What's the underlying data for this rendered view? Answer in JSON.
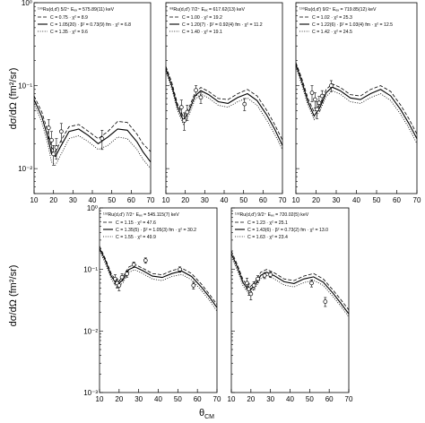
{
  "figure": {
    "ylabel": "dσ/dΩ (fm²/sr)",
    "xlabel_main": "θ",
    "xlabel_sub": "CM"
  },
  "chart_data": [
    {
      "type": "line",
      "log_y": true,
      "xlim": [
        10,
        70
      ],
      "ylim": [
        0.005,
        1
      ],
      "xticks": [
        10,
        20,
        30,
        40,
        50,
        60,
        70
      ],
      "ytick_labels": [
        "10⁻²",
        "10⁻¹",
        "10⁰"
      ],
      "header": {
        "reaction": "¹⁰⁰Ru(d,d′)",
        "spin": "5/2⁺",
        "energy": "Eₑₓ = 575.89(11) keV"
      },
      "legend": [
        "C = 0.75 · χ² = 8.9",
        "C = 1.05(20) · β² = 0.73(9) fm · χ² = 6.8",
        "C = 1.35 · χ² = 9.6"
      ],
      "series": [
        {
          "style": "dashed",
          "x": [
            10,
            14,
            17,
            19,
            21,
            24,
            28,
            33,
            38,
            43,
            48,
            53,
            58,
            63,
            66,
            70
          ],
          "y": [
            0.075,
            0.048,
            0.028,
            0.018,
            0.016,
            0.022,
            0.032,
            0.034,
            0.028,
            0.023,
            0.028,
            0.037,
            0.036,
            0.026,
            0.02,
            0.016
          ]
        },
        {
          "style": "solid",
          "x": [
            10,
            14,
            17,
            19,
            21,
            24,
            28,
            33,
            38,
            43,
            48,
            53,
            58,
            63,
            66,
            70
          ],
          "y": [
            0.068,
            0.042,
            0.024,
            0.015,
            0.014,
            0.019,
            0.028,
            0.03,
            0.025,
            0.02,
            0.024,
            0.03,
            0.029,
            0.021,
            0.016,
            0.012
          ]
        },
        {
          "style": "dotted",
          "x": [
            10,
            14,
            17,
            19,
            21,
            24,
            28,
            33,
            38,
            43,
            48,
            53,
            58,
            63,
            66,
            70
          ],
          "y": [
            0.06,
            0.036,
            0.02,
            0.012,
            0.011,
            0.015,
            0.023,
            0.025,
            0.021,
            0.017,
            0.019,
            0.024,
            0.023,
            0.017,
            0.013,
            0.01
          ]
        }
      ],
      "points": [
        {
          "x": 17.5,
          "y": 0.031,
          "err": 0.008
        },
        {
          "x": 19,
          "y": 0.022,
          "err": 0.006
        },
        {
          "x": 20,
          "y": 0.015,
          "err": 0.004
        },
        {
          "x": 21.5,
          "y": 0.018,
          "err": 0.005
        },
        {
          "x": 24,
          "y": 0.028,
          "err": 0.007
        },
        {
          "x": 45,
          "y": 0.023,
          "err": 0.006
        }
      ]
    },
    {
      "type": "line",
      "log_y": true,
      "xlim": [
        10,
        70
      ],
      "ylim": [
        0.005,
        1
      ],
      "xticks": [
        10,
        20,
        30,
        40,
        50,
        60,
        70
      ],
      "ytick_labels": [],
      "header": {
        "reaction": "⁹⁸Ru(d,d′)",
        "spin": "7/2⁺",
        "energy": "Eₑₓ = 617.62(13) keV"
      },
      "legend": [
        "C = 1.00 · χ² = 19.2",
        "C = 1.20(7) · β² = 0.92(4) fm · χ² = 11.2",
        "C = 1.40 · χ² = 19.1"
      ],
      "series": [
        {
          "style": "dashed",
          "x": [
            10,
            13,
            16,
            19,
            22,
            25,
            28,
            32,
            37,
            42,
            47,
            52,
            57,
            62,
            66,
            70
          ],
          "y": [
            0.17,
            0.11,
            0.06,
            0.042,
            0.055,
            0.082,
            0.095,
            0.085,
            0.07,
            0.068,
            0.08,
            0.09,
            0.075,
            0.05,
            0.034,
            0.022
          ]
        },
        {
          "style": "solid",
          "x": [
            10,
            13,
            16,
            19,
            22,
            25,
            28,
            32,
            37,
            42,
            47,
            52,
            57,
            62,
            66,
            70
          ],
          "y": [
            0.16,
            0.1,
            0.055,
            0.038,
            0.05,
            0.075,
            0.087,
            0.078,
            0.064,
            0.061,
            0.072,
            0.08,
            0.066,
            0.044,
            0.03,
            0.019
          ]
        },
        {
          "style": "dotted",
          "x": [
            10,
            13,
            16,
            19,
            22,
            25,
            28,
            32,
            37,
            42,
            47,
            52,
            57,
            62,
            66,
            70
          ],
          "y": [
            0.15,
            0.092,
            0.05,
            0.034,
            0.045,
            0.068,
            0.079,
            0.071,
            0.058,
            0.055,
            0.064,
            0.071,
            0.058,
            0.038,
            0.026,
            0.017
          ]
        }
      ],
      "points": [
        {
          "x": 18,
          "y": 0.055,
          "err": 0.012
        },
        {
          "x": 19.5,
          "y": 0.038,
          "err": 0.009
        },
        {
          "x": 21,
          "y": 0.048,
          "err": 0.01
        },
        {
          "x": 25.5,
          "y": 0.088,
          "err": 0.012
        },
        {
          "x": 28,
          "y": 0.072,
          "err": 0.011
        },
        {
          "x": 50.5,
          "y": 0.06,
          "err": 0.01
        }
      ]
    },
    {
      "type": "line",
      "log_y": true,
      "xlim": [
        10,
        70
      ],
      "ylim": [
        0.005,
        1
      ],
      "xticks": [
        10,
        20,
        30,
        40,
        50,
        60,
        70
      ],
      "ytick_labels": [],
      "header": {
        "reaction": "¹⁰⁰Ru(d,d′)",
        "spin": "9/2⁺",
        "energy": "Eₑₓ = 719.85(12) keV"
      },
      "legend": [
        "C = 1.02 · χ² = 25.3",
        "C = 1.22(6) · β² = 1.03(4) fm · χ² = 12.5",
        "C = 1.42 · χ² = 24.5"
      ],
      "series": [
        {
          "style": "dashed",
          "x": [
            10,
            13,
            16,
            19,
            22,
            25,
            28,
            32,
            37,
            42,
            47,
            52,
            57,
            62,
            66,
            70
          ],
          "y": [
            0.19,
            0.12,
            0.07,
            0.048,
            0.06,
            0.09,
            0.105,
            0.095,
            0.078,
            0.075,
            0.09,
            0.1,
            0.085,
            0.058,
            0.04,
            0.026
          ]
        },
        {
          "style": "solid",
          "x": [
            10,
            13,
            16,
            19,
            22,
            25,
            28,
            32,
            37,
            42,
            47,
            52,
            57,
            62,
            66,
            70
          ],
          "y": [
            0.18,
            0.11,
            0.064,
            0.043,
            0.055,
            0.082,
            0.096,
            0.087,
            0.071,
            0.068,
            0.08,
            0.09,
            0.075,
            0.051,
            0.035,
            0.023
          ]
        },
        {
          "style": "dotted",
          "x": [
            10,
            13,
            16,
            19,
            22,
            25,
            28,
            32,
            37,
            42,
            47,
            52,
            57,
            62,
            66,
            70
          ],
          "y": [
            0.17,
            0.1,
            0.058,
            0.039,
            0.05,
            0.074,
            0.087,
            0.079,
            0.064,
            0.061,
            0.072,
            0.08,
            0.066,
            0.045,
            0.031,
            0.02
          ]
        }
      ],
      "points": [
        {
          "x": 18,
          "y": 0.082,
          "err": 0.018
        },
        {
          "x": 19.5,
          "y": 0.068,
          "err": 0.014
        },
        {
          "x": 20.5,
          "y": 0.052,
          "err": 0.012
        },
        {
          "x": 21.5,
          "y": 0.062,
          "err": 0.012
        },
        {
          "x": 23,
          "y": 0.075,
          "err": 0.012
        },
        {
          "x": 27.5,
          "y": 0.1,
          "err": 0.015
        }
      ]
    },
    {
      "type": "line",
      "log_y": true,
      "xlim": [
        10,
        70
      ],
      "ylim": [
        0.001,
        1
      ],
      "xticks": [
        10,
        20,
        30,
        40,
        50,
        60,
        70
      ],
      "ytick_labels": [
        "10⁻³",
        "10⁻²",
        "10⁻¹",
        "10⁰"
      ],
      "header": {
        "reaction": "¹⁰²Ru(d,d′)",
        "spin": "7/2⁺",
        "energy": "Eₑₓ = 545.115(7) keV"
      },
      "legend": [
        "C = 1.15 · χ² = 47.6",
        "C = 1.35(5) · β² = 1.05(3) fm · χ² = 30.2",
        "C = 1.55 · χ² = 49.9"
      ],
      "series": [
        {
          "style": "dashed",
          "x": [
            10,
            13,
            16,
            19,
            22,
            25,
            28,
            32,
            37,
            42,
            47,
            52,
            57,
            62,
            66,
            70
          ],
          "y": [
            0.24,
            0.15,
            0.085,
            0.062,
            0.075,
            0.11,
            0.12,
            0.105,
            0.086,
            0.082,
            0.096,
            0.105,
            0.086,
            0.058,
            0.04,
            0.027
          ]
        },
        {
          "style": "solid",
          "x": [
            10,
            13,
            16,
            19,
            22,
            25,
            28,
            32,
            37,
            42,
            47,
            52,
            57,
            62,
            66,
            70
          ],
          "y": [
            0.22,
            0.14,
            0.078,
            0.056,
            0.068,
            0.1,
            0.11,
            0.096,
            0.078,
            0.074,
            0.086,
            0.094,
            0.077,
            0.052,
            0.036,
            0.024
          ]
        },
        {
          "style": "dotted",
          "x": [
            10,
            13,
            16,
            19,
            22,
            25,
            28,
            32,
            37,
            42,
            47,
            52,
            57,
            62,
            66,
            70
          ],
          "y": [
            0.2,
            0.125,
            0.07,
            0.05,
            0.061,
            0.09,
            0.099,
            0.086,
            0.07,
            0.066,
            0.077,
            0.083,
            0.068,
            0.046,
            0.032,
            0.021
          ]
        }
      ],
      "points": [
        {
          "x": 18,
          "y": 0.07,
          "err": 0.012
        },
        {
          "x": 19,
          "y": 0.06,
          "err": 0.01
        },
        {
          "x": 20,
          "y": 0.055,
          "err": 0.01
        },
        {
          "x": 21.5,
          "y": 0.075,
          "err": 0.01
        },
        {
          "x": 24,
          "y": 0.085,
          "err": 0.01
        },
        {
          "x": 27.5,
          "y": 0.12,
          "err": 0.012
        },
        {
          "x": 33.5,
          "y": 0.14,
          "err": 0.014
        },
        {
          "x": 51,
          "y": 0.1,
          "err": 0.01
        },
        {
          "x": 58,
          "y": 0.055,
          "err": 0.007
        }
      ]
    },
    {
      "type": "line",
      "log_y": true,
      "xlim": [
        10,
        70
      ],
      "ylim": [
        0.001,
        1
      ],
      "xticks": [
        10,
        20,
        30,
        40,
        50,
        60,
        70
      ],
      "ytick_labels": [],
      "header": {
        "reaction": "¹⁰²Ru(d,d′)",
        "spin": "9/2⁺",
        "energy": "Eₑₓ = 720.02(5) keV"
      },
      "legend": [
        "C = 1.23 · χ² = 25.1",
        "C = 1.43(6) · β² = 0.73(2) fm · χ² = 13.0",
        "C = 1.63 · χ² = 23.4"
      ],
      "series": [
        {
          "style": "dashed",
          "x": [
            10,
            13,
            16,
            19,
            22,
            25,
            28,
            32,
            37,
            42,
            47,
            52,
            57,
            62,
            66,
            70
          ],
          "y": [
            0.2,
            0.12,
            0.068,
            0.05,
            0.062,
            0.09,
            0.1,
            0.088,
            0.07,
            0.066,
            0.078,
            0.086,
            0.07,
            0.046,
            0.032,
            0.022
          ]
        },
        {
          "style": "solid",
          "x": [
            10,
            13,
            16,
            19,
            22,
            25,
            28,
            32,
            37,
            42,
            47,
            52,
            57,
            62,
            66,
            70
          ],
          "y": [
            0.18,
            0.11,
            0.061,
            0.045,
            0.055,
            0.08,
            0.09,
            0.079,
            0.063,
            0.059,
            0.07,
            0.076,
            0.062,
            0.041,
            0.028,
            0.019
          ]
        },
        {
          "style": "dotted",
          "x": [
            10,
            13,
            16,
            19,
            22,
            25,
            28,
            32,
            37,
            42,
            47,
            52,
            57,
            62,
            66,
            70
          ],
          "y": [
            0.16,
            0.097,
            0.054,
            0.04,
            0.049,
            0.071,
            0.08,
            0.07,
            0.056,
            0.052,
            0.061,
            0.067,
            0.055,
            0.036,
            0.025,
            0.017
          ]
        }
      ],
      "points": [
        {
          "x": 18,
          "y": 0.06,
          "err": 0.012
        },
        {
          "x": 19,
          "y": 0.048,
          "err": 0.01
        },
        {
          "x": 20,
          "y": 0.04,
          "err": 0.008
        },
        {
          "x": 21.5,
          "y": 0.055,
          "err": 0.008
        },
        {
          "x": 23.5,
          "y": 0.07,
          "err": 0.009
        },
        {
          "x": 27,
          "y": 0.08,
          "err": 0.009
        },
        {
          "x": 30,
          "y": 0.082,
          "err": 0.008
        },
        {
          "x": 51,
          "y": 0.06,
          "err": 0.008
        },
        {
          "x": 58,
          "y": 0.03,
          "err": 0.005
        }
      ]
    }
  ]
}
